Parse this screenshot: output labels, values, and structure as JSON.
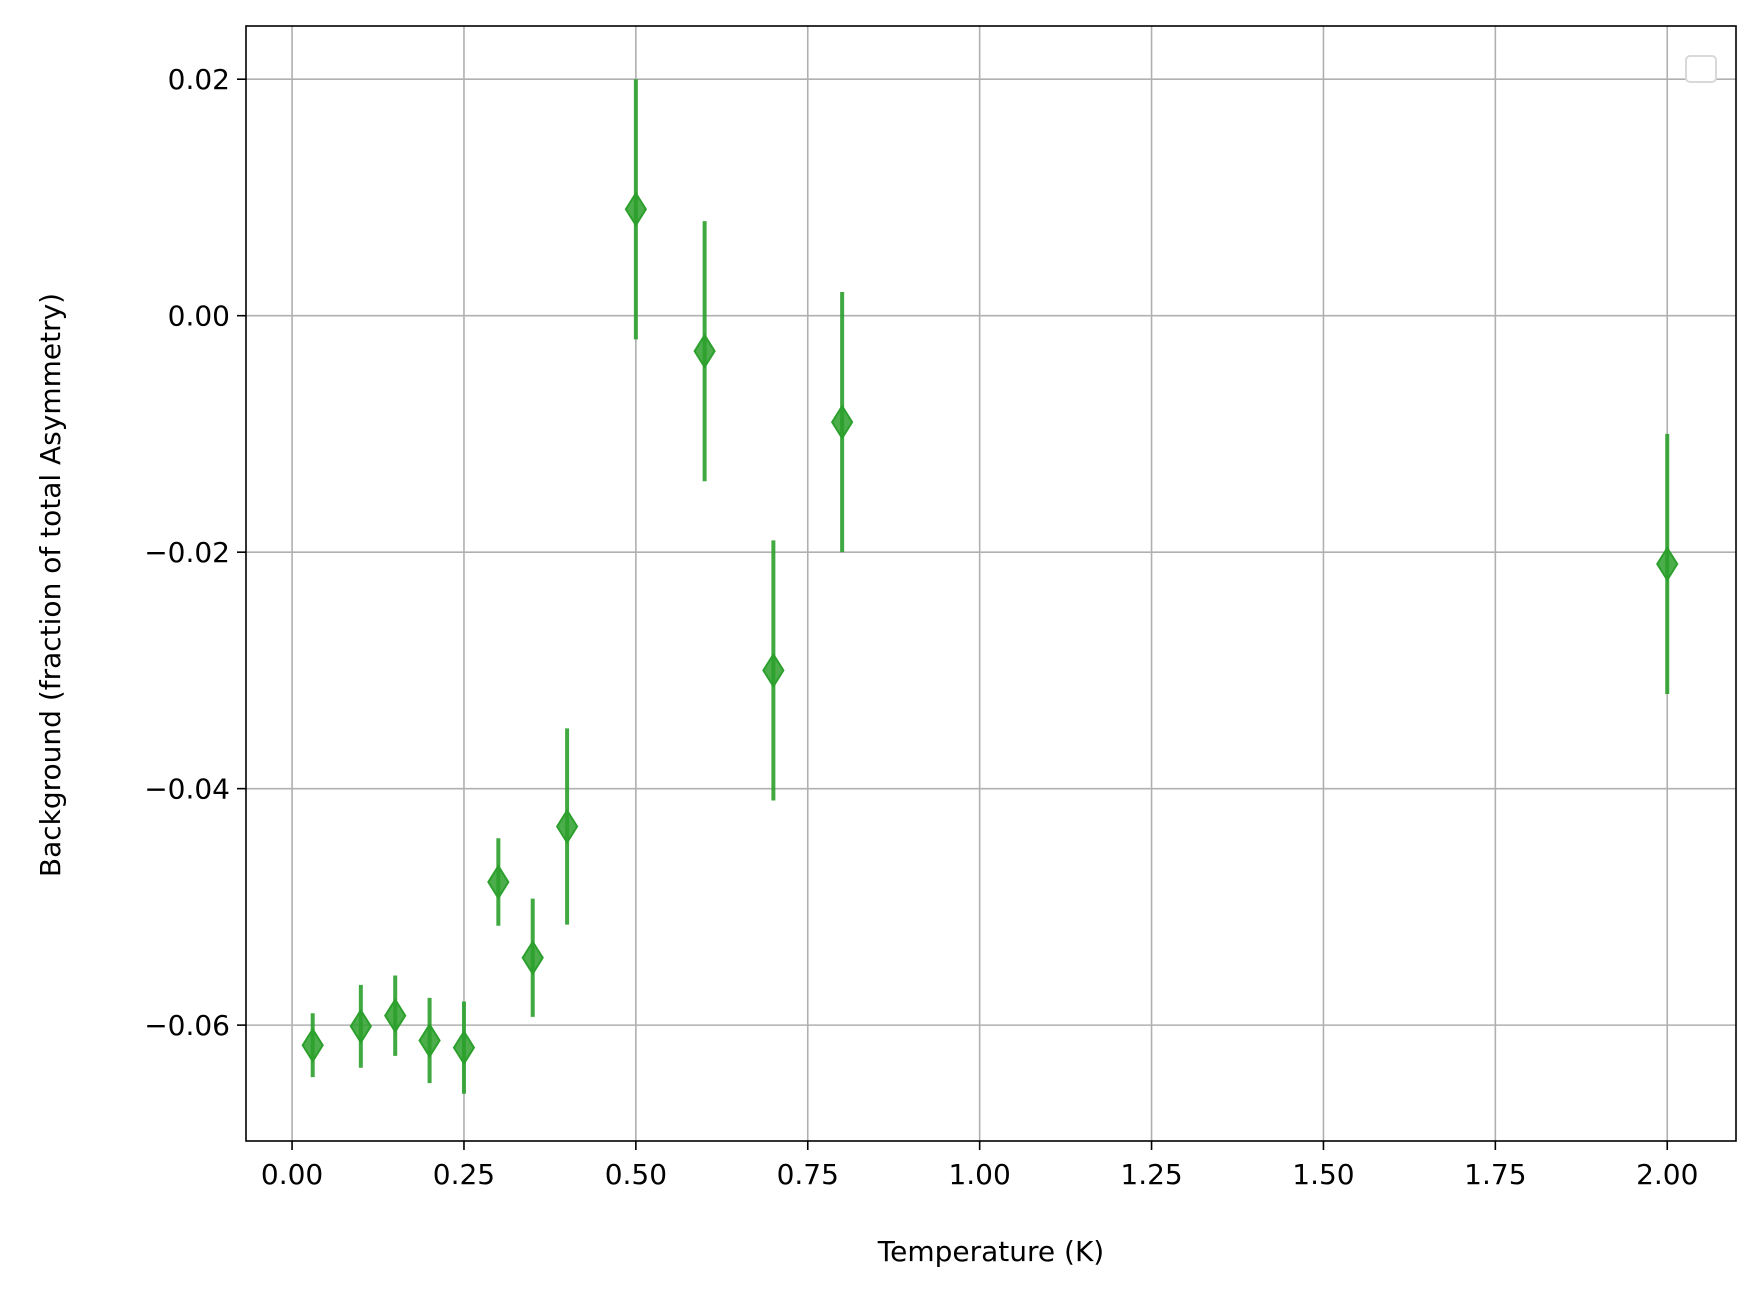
{
  "chart_data": {
    "type": "scatter",
    "title": "",
    "xlabel": "Temperature (K)",
    "ylabel": "Background (fraction of total Asymmetry)",
    "xlim": [
      -0.067,
      2.1
    ],
    "ylim": [
      -0.0698,
      0.0245
    ],
    "xticks": [
      0.0,
      0.25,
      0.5,
      0.75,
      1.0,
      1.25,
      1.5,
      1.75,
      2.0
    ],
    "xtick_labels": [
      "0.00",
      "0.25",
      "0.50",
      "0.75",
      "1.00",
      "1.25",
      "1.50",
      "1.75",
      "2.00"
    ],
    "yticks": [
      -0.06,
      -0.04,
      -0.02,
      0.0,
      0.02
    ],
    "ytick_labels": [
      "−0.06",
      "−0.04",
      "−0.02",
      "0.00",
      "0.02"
    ],
    "grid": true,
    "legend": "top-right (empty)",
    "marker": "thin diamond",
    "color": "#2ca02c",
    "series": [
      {
        "points": [
          {
            "x": 0.03,
            "y": -0.0617,
            "err": 0.0027
          },
          {
            "x": 0.1,
            "y": -0.0601,
            "err": 0.0035
          },
          {
            "x": 0.15,
            "y": -0.0592,
            "err": 0.0034
          },
          {
            "x": 0.2,
            "y": -0.0613,
            "err": 0.0036
          },
          {
            "x": 0.25,
            "y": -0.0619,
            "err": 0.0039
          },
          {
            "x": 0.3,
            "y": -0.0479,
            "err": 0.0037
          },
          {
            "x": 0.35,
            "y": -0.0543,
            "err": 0.005
          },
          {
            "x": 0.4,
            "y": -0.0432,
            "err": 0.0083
          },
          {
            "x": 0.5,
            "y": 0.009,
            "err": 0.011
          },
          {
            "x": 0.6,
            "y": -0.003,
            "err": 0.011
          },
          {
            "x": 0.7,
            "y": -0.03,
            "err": 0.011
          },
          {
            "x": 0.8,
            "y": -0.009,
            "err": 0.011
          },
          {
            "x": 2.0,
            "y": -0.021,
            "err": 0.011
          }
        ]
      }
    ]
  }
}
